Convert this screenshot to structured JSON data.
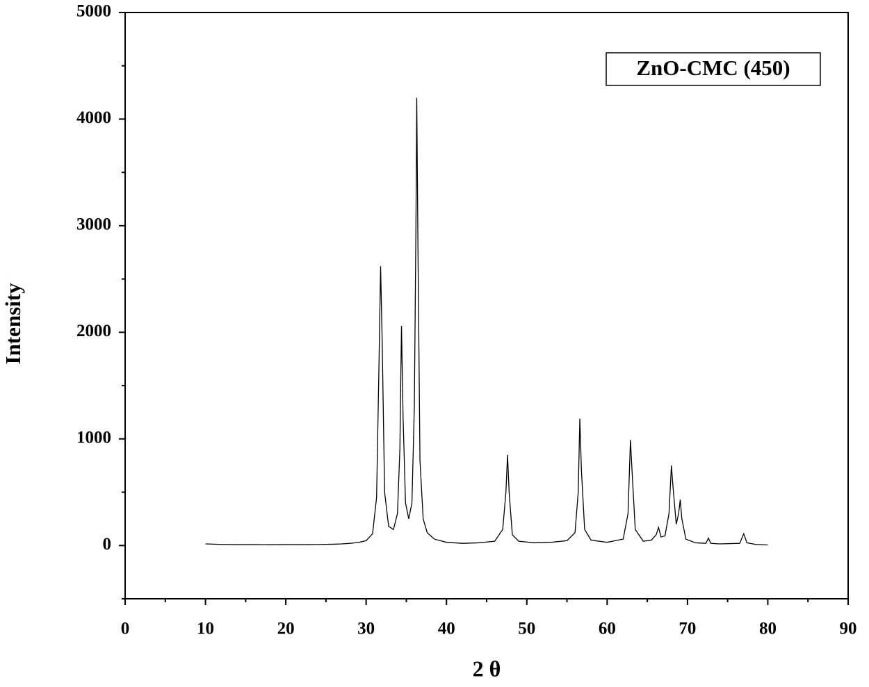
{
  "chart_data": {
    "type": "line",
    "legend": "ZnO-CMC (450)",
    "xlabel": "2 θ",
    "ylabel": "Intensity",
    "color": "#000000",
    "x": [
      10,
      12,
      14,
      16,
      18,
      20,
      22,
      24,
      26,
      27,
      28,
      29,
      30,
      30.8,
      31.3,
      31.6,
      31.8,
      32.0,
      32.3,
      32.8,
      33.4,
      33.9,
      34.2,
      34.4,
      34.6,
      34.9,
      35.3,
      35.7,
      36.0,
      36.2,
      36.3,
      36.45,
      36.7,
      37.1,
      37.6,
      38.5,
      40,
      42,
      44,
      46,
      47.0,
      47.4,
      47.6,
      47.8,
      48.2,
      49,
      51,
      53,
      55,
      56.0,
      56.4,
      56.6,
      56.8,
      57.2,
      58,
      60,
      62.0,
      62.6,
      62.9,
      63.1,
      63.5,
      64.5,
      65.5,
      66.1,
      66.4,
      66.7,
      67.2,
      67.7,
      68.0,
      68.2,
      68.6,
      68.9,
      69.1,
      69.3,
      69.8,
      71,
      72.3,
      72.6,
      72.9,
      74,
      76.5,
      77.0,
      77.4,
      78.5,
      80
    ],
    "values": [
      15,
      10,
      8,
      8,
      7,
      8,
      8,
      9,
      12,
      15,
      20,
      28,
      45,
      110,
      450,
      1700,
      2620,
      1900,
      500,
      180,
      150,
      300,
      900,
      2060,
      1200,
      400,
      250,
      400,
      1300,
      3000,
      4200,
      2800,
      800,
      250,
      120,
      60,
      30,
      20,
      25,
      40,
      150,
      500,
      850,
      500,
      100,
      40,
      25,
      30,
      45,
      120,
      500,
      1190,
      700,
      150,
      50,
      30,
      60,
      300,
      990,
      700,
      150,
      40,
      50,
      100,
      170,
      80,
      90,
      300,
      750,
      550,
      200,
      300,
      430,
      250,
      60,
      25,
      20,
      70,
      20,
      15,
      20,
      110,
      25,
      10,
      5
    ],
    "xlim": [
      0,
      90
    ],
    "xticks": [
      0,
      10,
      20,
      30,
      40,
      50,
      60,
      70,
      80,
      90
    ],
    "ylim": [
      -500,
      5000
    ],
    "yticks": [
      0,
      1000,
      2000,
      3000,
      4000,
      5000
    ]
  }
}
